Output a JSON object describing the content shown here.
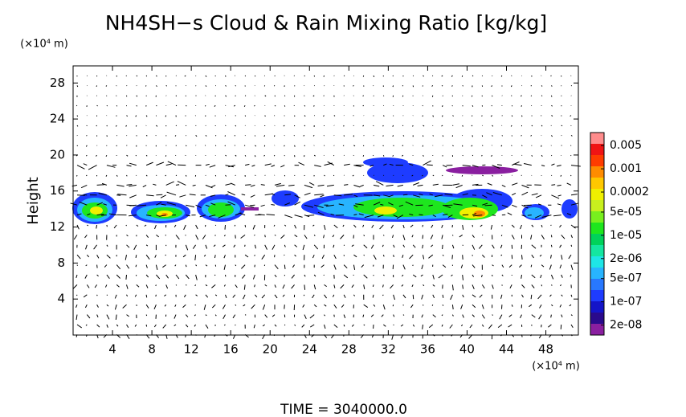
{
  "chart_data": {
    "type": "contour",
    "title": "NH4SH−s Cloud & Rain Mixing Ratio [kg/kg]",
    "ylabel": "Height",
    "yunit": "(×10⁴ m)",
    "xunit": "(×10⁴ m)",
    "footer": "TIME = 3040000.0",
    "xlim": [
      0,
      51.3
    ],
    "ylim": [
      0,
      29.9
    ],
    "xticks": [
      4,
      8,
      12,
      16,
      20,
      24,
      28,
      32,
      36,
      40,
      44,
      48
    ],
    "yticks": [
      4,
      8,
      12,
      16,
      20,
      24,
      28
    ],
    "grid": false,
    "colorbar": {
      "log": true,
      "lim": [
        1e-08,
        0.0123
      ],
      "ticks": [
        0.005,
        0.001,
        {
          "value": 0.0002,
          "label": "0.0002"
        },
        {
          "value": 5e-05,
          "label": "5e-05"
        },
        {
          "value": 1e-05,
          "label": "1e-05"
        },
        {
          "value": 2e-06,
          "label": "2e-06"
        },
        {
          "value": 5e-07,
          "label": "5e-07"
        },
        {
          "value": 1e-07,
          "label": "1e-07"
        },
        {
          "value": 2e-08,
          "label": "2e-08"
        }
      ],
      "colors": [
        "#8a1fa0",
        "#2a0a8c",
        "#1414c8",
        "#1e3cff",
        "#2878ff",
        "#28b4ff",
        "#1ee6e6",
        "#14e6a0",
        "#00d25a",
        "#1ee61e",
        "#78f01e",
        "#c8f01e",
        "#f0f000",
        "#ffc800",
        "#ff8c00",
        "#ff3c00",
        "#f01414",
        "#ff8c8c"
      ]
    }
  }
}
